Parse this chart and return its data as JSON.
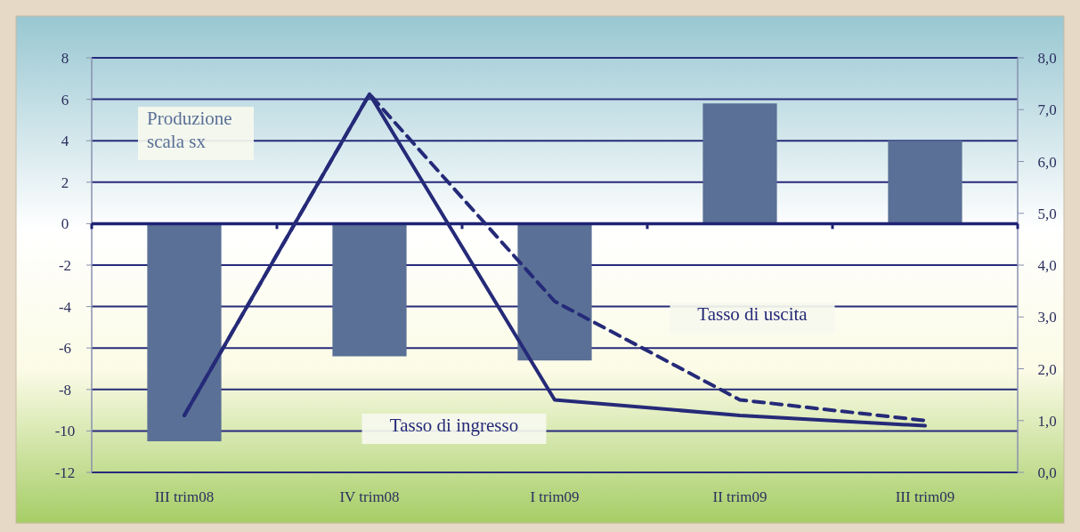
{
  "chart_data": {
    "type": "bar",
    "categories": [
      "III trim08",
      "IV trim08",
      "I trim09",
      "II trim09",
      "III trim09"
    ],
    "series": [
      {
        "name": "Produzione scala sx",
        "color": "#5a7096",
        "values": [
          -10.5,
          -6.4,
          -6.6,
          5.8,
          4.0
        ]
      },
      {
        "name": "Tasso di ingresso",
        "type": "line",
        "axis": "y2",
        "color": "#252a78",
        "line_style": "solid",
        "values": [
          1.1,
          7.3,
          1.4,
          1.1,
          0.9
        ]
      },
      {
        "name": "Tasso di uscita",
        "type": "line",
        "axis": "y2",
        "color": "#252a78",
        "line_style": "dashed",
        "values": [
          1.1,
          7.3,
          3.3,
          1.4,
          1.0
        ]
      }
    ],
    "ylim": [
      -12,
      8
    ],
    "yticks": [
      -12,
      -10,
      -8,
      -6,
      -4,
      -2,
      0,
      2,
      4,
      6,
      8
    ],
    "y2lim": [
      0,
      8
    ],
    "y2ticks": [
      {
        "value": 0,
        "label": "0,0"
      },
      {
        "value": 1,
        "label": "1,0"
      },
      {
        "value": 2,
        "label": "2,0"
      },
      {
        "value": 3,
        "label": "3,0"
      },
      {
        "value": 4,
        "label": "4,0"
      },
      {
        "value": 5,
        "label": "5,0"
      },
      {
        "value": 6,
        "label": "6,0"
      },
      {
        "value": 7,
        "label": "7,0"
      },
      {
        "value": 8,
        "label": "8,0"
      }
    ],
    "ref_lines": [
      {
        "axis": "y",
        "value": 0,
        "color": "#1e2275"
      }
    ],
    "grid": "y",
    "legend": false
  }
}
